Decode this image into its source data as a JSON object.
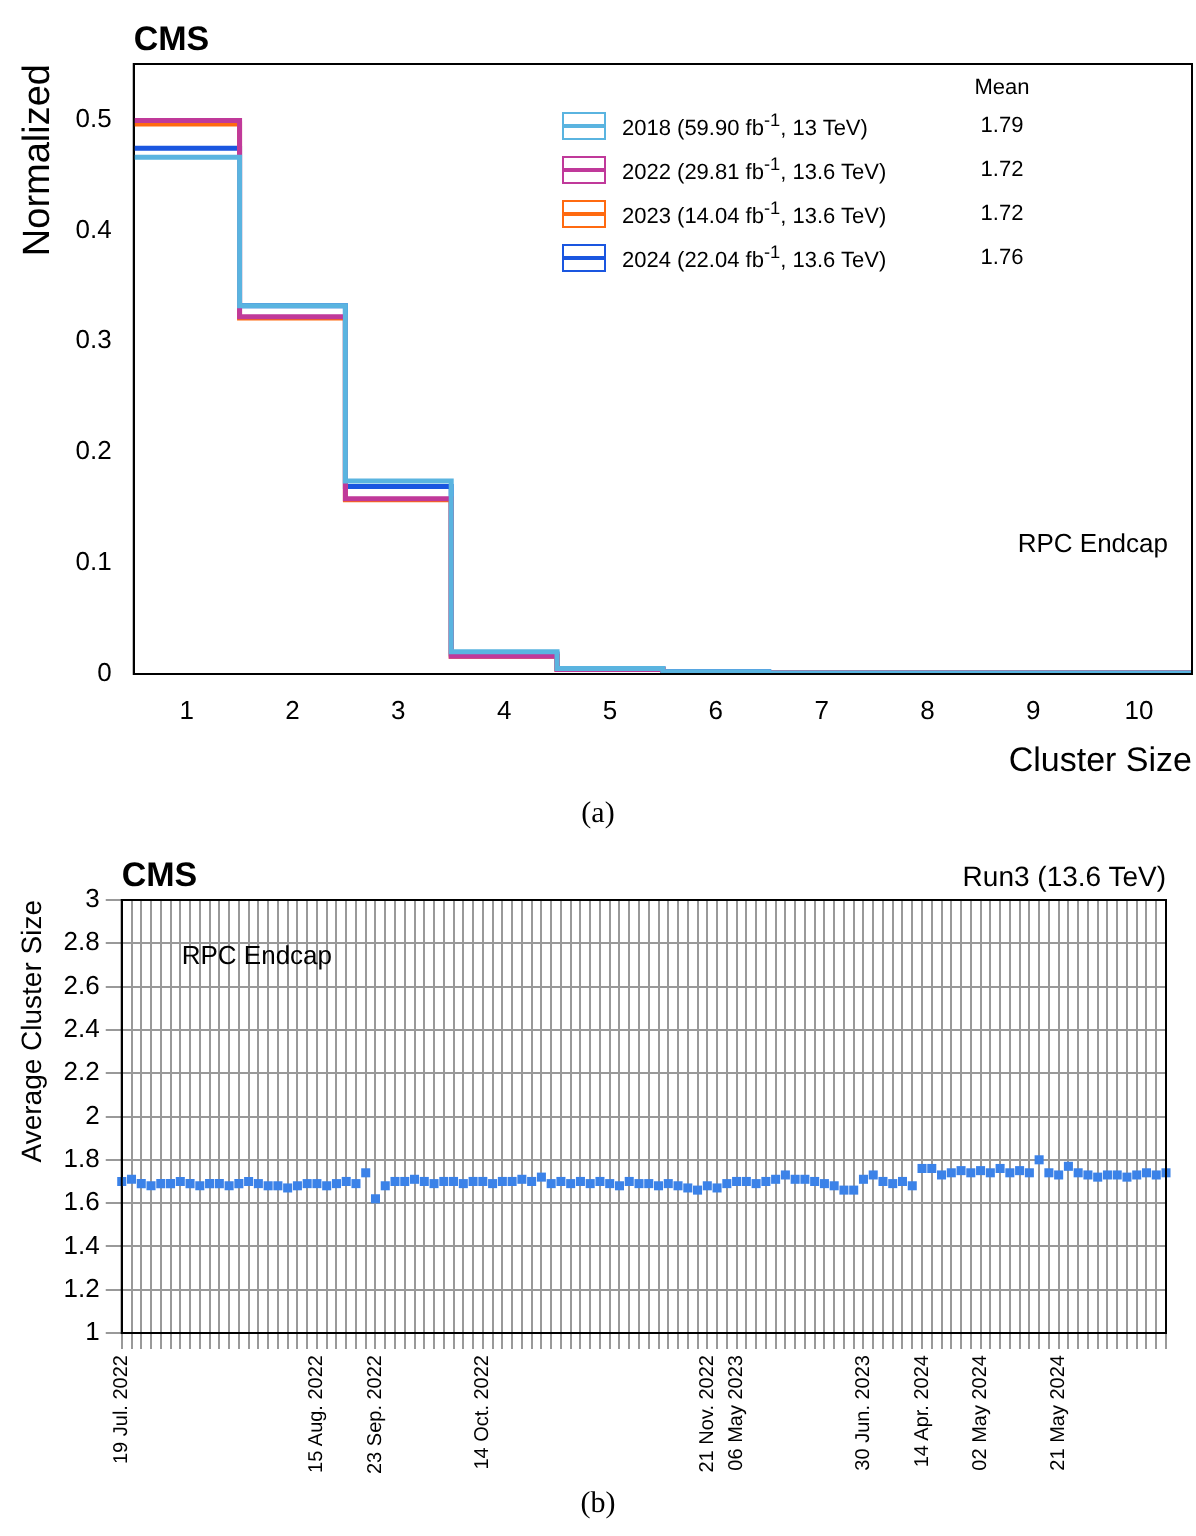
{
  "chart_data": [
    {
      "type": "histogram",
      "title": "CMS",
      "xlabel": "Cluster Size",
      "ylabel": "Normalized",
      "bins": [
        0.5,
        1.5,
        2.5,
        3.5,
        4.5,
        5.5,
        6.5,
        7.5,
        8.5,
        9.5,
        10.5
      ],
      "series": [
        {
          "name": "2018 (59.90 fb$^{-1}$, 13 TeV)",
          "color": "#5ab4e0",
          "values": [
            0.466,
            0.332,
            0.174,
            0.02,
            0.005,
            0.002,
            0.001,
            0.001,
            0.001,
            0.001
          ]
        },
        {
          "name": "2022 (29.81 fb$^{-1}$, 13.6 TeV)",
          "color": "#c0399a",
          "values": [
            0.499,
            0.322,
            0.158,
            0.016,
            0.004,
            0.001,
            0.001,
            0.001,
            0.001,
            0.001
          ]
        },
        {
          "name": "2023 (14.04 fb$^{-1}$, 13.6 TeV)",
          "color": "#ff6a10",
          "values": [
            0.496,
            0.321,
            0.157,
            0.016,
            0.004,
            0.001,
            0.001,
            0.001,
            0.001,
            0.001
          ]
        },
        {
          "name": "2024 (22.04 fb$^{-1}$, 13.6 TeV)",
          "color": "#1a56e0",
          "values": [
            0.474,
            0.332,
            0.169,
            0.018,
            0.005,
            0.002,
            0.001,
            0.001,
            0.001,
            0.001
          ]
        }
      ],
      "xlim": [
        0.5,
        10.5
      ],
      "xticks": [
        1,
        2,
        3,
        4,
        5,
        6,
        7,
        8,
        9,
        10
      ],
      "ylim": [
        0,
        0.55
      ],
      "yticks": [
        0,
        0.1,
        0.2,
        0.3,
        0.4,
        0.5
      ],
      "legend": "top right",
      "annotations": [
        "RPC Endcap",
        "Mean",
        "1.79",
        "1.72",
        "1.72",
        "1.76",
        "(a)"
      ]
    },
    {
      "type": "scatter",
      "title": "CMS",
      "subtitle": "Run3 (13.6 TeV)",
      "ylabel": "Average Cluster Size",
      "marker": "square",
      "grid": true,
      "categories": [
        "19 Jul. 2022",
        null,
        null,
        null,
        null,
        null,
        null,
        null,
        null,
        null,
        null,
        null,
        null,
        null,
        null,
        null,
        null,
        null,
        null,
        null,
        "15 Aug. 2022",
        null,
        null,
        null,
        null,
        null,
        "23 Sep. 2022",
        null,
        null,
        null,
        null,
        null,
        null,
        null,
        null,
        null,
        null,
        "14 Oct. 2022",
        null,
        null,
        null,
        null,
        null,
        null,
        null,
        null,
        null,
        null,
        null,
        null,
        null,
        null,
        null,
        null,
        null,
        null,
        null,
        null,
        null,
        null,
        "21 Nov. 2022",
        null,
        null,
        "06 May 2023",
        null,
        null,
        null,
        null,
        null,
        null,
        null,
        null,
        null,
        null,
        null,
        null,
        "30 Jun. 2023",
        null,
        null,
        null,
        null,
        null,
        "14 Apr. 2024",
        null,
        null,
        null,
        null,
        null,
        "02 May 2024",
        null,
        null,
        null,
        null,
        null,
        null,
        null,
        "21 May 2024",
        null,
        null,
        null,
        null,
        null,
        null,
        null,
        null,
        null,
        null,
        null
      ],
      "series": [
        {
          "color": "#3b82e8",
          "values": [
            1.7,
            1.71,
            1.69,
            1.68,
            1.69,
            1.69,
            1.7,
            1.69,
            1.68,
            1.69,
            1.69,
            1.68,
            1.69,
            1.7,
            1.69,
            1.68,
            1.68,
            1.67,
            1.68,
            1.69,
            1.69,
            1.68,
            1.69,
            1.7,
            1.69,
            1.74,
            1.62,
            1.68,
            1.7,
            1.7,
            1.71,
            1.7,
            1.69,
            1.7,
            1.7,
            1.69,
            1.7,
            1.7,
            1.69,
            1.7,
            1.7,
            1.71,
            1.7,
            1.72,
            1.69,
            1.7,
            1.69,
            1.7,
            1.69,
            1.7,
            1.69,
            1.68,
            1.7,
            1.69,
            1.69,
            1.68,
            1.69,
            1.68,
            1.67,
            1.66,
            1.68,
            1.67,
            1.69,
            1.7,
            1.7,
            1.69,
            1.7,
            1.71,
            1.73,
            1.71,
            1.71,
            1.7,
            1.69,
            1.68,
            1.66,
            1.66,
            1.71,
            1.73,
            1.7,
            1.69,
            1.7,
            1.68,
            1.76,
            1.76,
            1.73,
            1.74,
            1.75,
            1.74,
            1.75,
            1.74,
            1.76,
            1.74,
            1.75,
            1.74,
            1.8,
            1.74,
            1.73,
            1.77,
            1.74,
            1.73,
            1.72,
            1.73,
            1.73,
            1.72,
            1.73,
            1.74,
            1.73,
            1.74
          ]
        }
      ],
      "ylim": [
        1,
        3
      ],
      "yticks": [
        1,
        {
          "value": 1.2,
          "label": "1.2"
        },
        {
          "value": 1.4,
          "label": "1.4"
        },
        {
          "value": 1.6,
          "label": "1.6"
        },
        {
          "value": 1.8,
          "label": "1.8"
        },
        2,
        {
          "value": 2.2,
          "label": "2.2"
        },
        {
          "value": 2.4,
          "label": "2.4"
        },
        {
          "value": 2.6,
          "label": "2.6"
        },
        {
          "value": 2.8,
          "label": "2.8"
        },
        3
      ],
      "annotations": [
        "RPC Endcap",
        "(b)"
      ]
    }
  ]
}
